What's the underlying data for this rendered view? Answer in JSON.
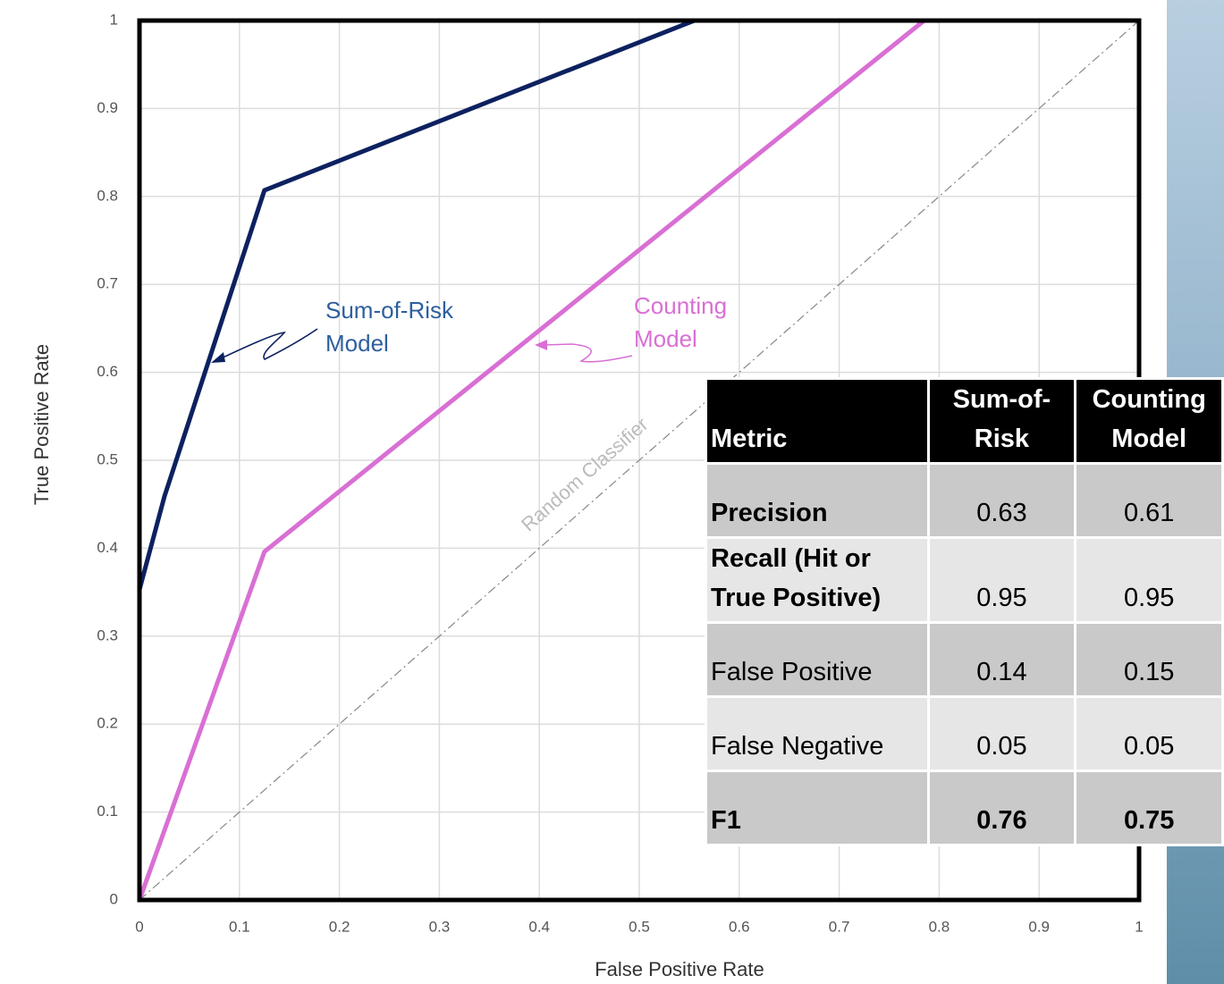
{
  "chart_data": {
    "type": "line",
    "xlabel": "False Positive Rate",
    "ylabel": "True Positive Rate",
    "series": [
      {
        "name": "Sum-of-Risk Model",
        "color": "#0d2160",
        "x": [
          0,
          0.025,
          0.125,
          0.555,
          1
        ],
        "values": [
          0.353,
          0.459,
          0.807,
          1,
          1
        ]
      },
      {
        "name": "Counting Model",
        "color": "#d96fd4",
        "x": [
          0,
          0.125,
          0.785,
          1
        ],
        "values": [
          0,
          0.396,
          1,
          1
        ]
      }
    ],
    "reference_line": {
      "name": "Random Classifier",
      "x": [
        0,
        1
      ],
      "values": [
        0,
        1
      ],
      "color": "#888888"
    },
    "xlim": [
      0,
      1
    ],
    "ylim": [
      0,
      1
    ],
    "xticks": [
      0,
      0.1,
      0.2,
      0.3,
      0.4,
      0.5,
      0.6,
      0.7,
      0.8,
      0.9,
      1
    ],
    "yticks": [
      0,
      0.1,
      0.2,
      0.3,
      0.4,
      0.5,
      0.6,
      0.7,
      0.8,
      0.9,
      1
    ],
    "grid": true
  },
  "table": {
    "header": [
      "Metric",
      "Sum-of-Risk",
      "Counting Model"
    ],
    "rows": [
      [
        "Precision",
        "0.63",
        "0.61"
      ],
      [
        "Recall (Hit or True Positive)",
        "0.95",
        "0.95"
      ],
      [
        "False Positive",
        "0.14",
        "0.15"
      ],
      [
        "False Negative",
        "0.05",
        "0.05"
      ],
      [
        "F1",
        "0.76",
        "0.75"
      ]
    ]
  }
}
